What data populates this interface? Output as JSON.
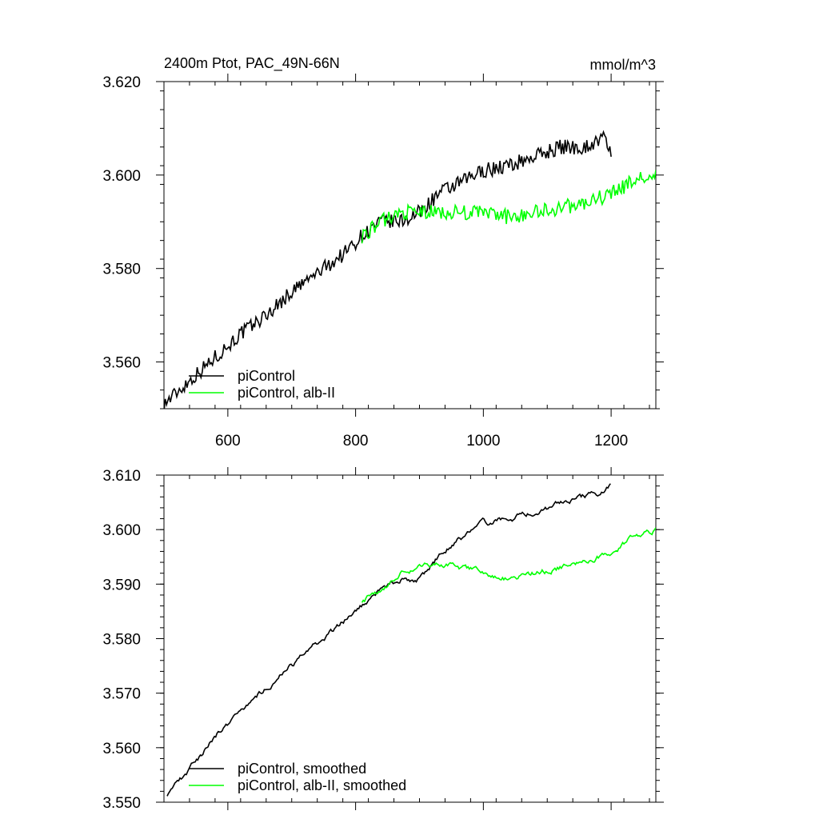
{
  "chart_data": [
    {
      "type": "line",
      "title": "2400m Ptot, PAC_49N-66N",
      "units": "mmol/m^3",
      "xlim": [
        500,
        1270
      ],
      "ylim": [
        3.55,
        3.62
      ],
      "xticks": [
        600,
        800,
        1000,
        1200
      ],
      "xtick_labels": [
        "600",
        "800",
        "1000",
        "1200"
      ],
      "yticks": [
        3.56,
        3.58,
        3.6,
        3.62
      ],
      "ytick_labels": [
        "3.560",
        "3.580",
        "3.600",
        "3.620"
      ],
      "legend_position": "bottom-left",
      "noise": 0.0018,
      "series": [
        {
          "name": "piControl",
          "color": "#000000",
          "x": [
            500,
            540,
            580,
            620,
            660,
            700,
            740,
            780,
            810,
            840,
            870,
            900,
            930,
            960,
            1000,
            1040,
            1080,
            1120,
            1160,
            1190,
            1200
          ],
          "values": [
            3.551,
            3.556,
            3.561,
            3.566,
            3.57,
            3.575,
            3.579,
            3.583,
            3.587,
            3.59,
            3.59,
            3.592,
            3.596,
            3.598,
            3.601,
            3.602,
            3.604,
            3.606,
            3.606,
            3.608,
            3.605
          ]
        },
        {
          "name": "piControl, alb-II",
          "color": "#00ff00",
          "x": [
            810,
            840,
            870,
            900,
            930,
            960,
            1000,
            1040,
            1080,
            1120,
            1160,
            1200,
            1240,
            1270
          ],
          "values": [
            3.587,
            3.59,
            3.592,
            3.592,
            3.592,
            3.592,
            3.592,
            3.591,
            3.592,
            3.593,
            3.594,
            3.596,
            3.599,
            3.6
          ]
        }
      ]
    },
    {
      "type": "line",
      "title": "",
      "xlim": [
        500,
        1270
      ],
      "ylim": [
        3.55,
        3.61
      ],
      "xticks": [
        600,
        800,
        1000,
        1200
      ],
      "xtick_labels": [],
      "yticks": [
        3.55,
        3.56,
        3.57,
        3.58,
        3.59,
        3.6,
        3.61
      ],
      "ytick_labels": [
        "3.550",
        "3.560",
        "3.570",
        "3.580",
        "3.590",
        "3.600",
        "3.610"
      ],
      "legend_position": "bottom-left",
      "noise": 0.0007,
      "series": [
        {
          "name": "piControl, smoothed",
          "color": "#000000",
          "x": [
            505,
            540,
            580,
            620,
            660,
            700,
            740,
            780,
            810,
            840,
            870,
            900,
            930,
            960,
            1000,
            1040,
            1080,
            1120,
            1160,
            1190,
            1200
          ],
          "values": [
            3.5515,
            3.556,
            3.562,
            3.567,
            3.571,
            3.575,
            3.579,
            3.583,
            3.586,
            3.589,
            3.591,
            3.591,
            3.595,
            3.598,
            3.601,
            3.602,
            3.603,
            3.605,
            3.606,
            3.607,
            3.608
          ]
        },
        {
          "name": "piControl, alb-II, smoothed",
          "color": "#00ff00",
          "x": [
            810,
            840,
            870,
            900,
            930,
            960,
            1000,
            1040,
            1080,
            1120,
            1160,
            1200,
            1240,
            1270
          ],
          "values": [
            3.587,
            3.589,
            3.592,
            3.593,
            3.594,
            3.593,
            3.592,
            3.591,
            3.592,
            3.593,
            3.594,
            3.596,
            3.599,
            3.6
          ]
        }
      ]
    }
  ]
}
